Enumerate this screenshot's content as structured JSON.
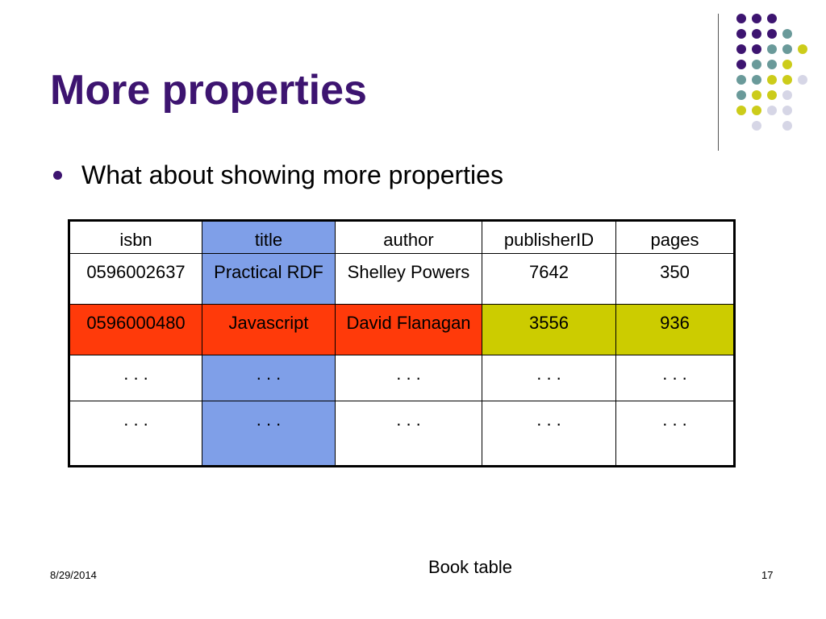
{
  "slide": {
    "title": "More properties",
    "bullet": "What about showing more properties",
    "caption": "Book table",
    "date": "8/29/2014",
    "page_number": "17"
  },
  "colors": {
    "title": "#3d1470",
    "highlight_column": "#7f9fe8",
    "highlight_row": "#ff3a0a",
    "highlight_cells": "#cccc00",
    "dot_purple": "#3d1470",
    "dot_teal": "#6a9a9a",
    "dot_yellow": "#cccc1a",
    "dot_lavender": "#d6d6e6"
  },
  "table": {
    "headers": [
      "isbn",
      "title",
      "author",
      "publisherID",
      "pages"
    ],
    "rows": [
      [
        "0596002637",
        "Practical RDF",
        "Shelley Powers",
        "7642",
        "350"
      ],
      [
        "0596000480",
        "Javascript",
        "David Flanagan",
        "3556",
        "936"
      ],
      [
        ". . .",
        ". . .",
        ". . .",
        ". . .",
        ". . ."
      ],
      [
        ". . .",
        ". . .",
        ". . .",
        ". . .",
        ". . ."
      ]
    ]
  }
}
